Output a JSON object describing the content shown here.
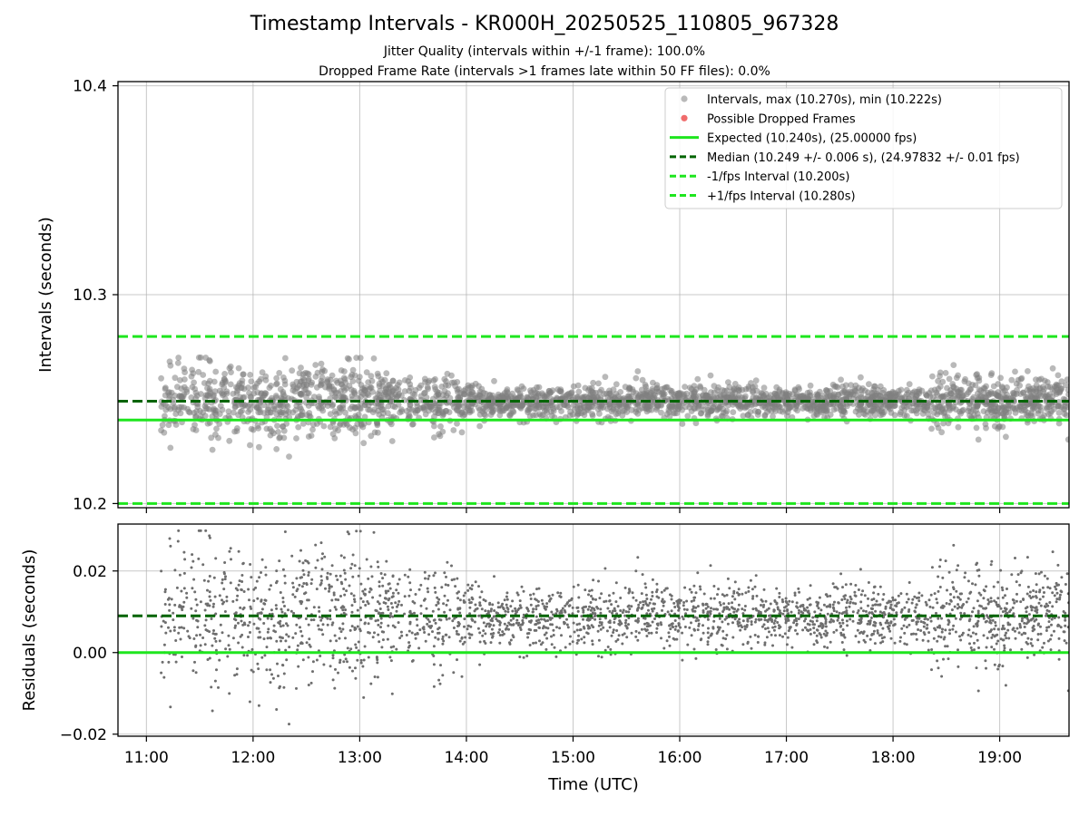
{
  "header": {
    "title": "Timestamp Intervals - KR000H_20250525_110805_967328",
    "subtitle_jitter": "Jitter Quality (intervals within +/-1 frame): 100.0%",
    "subtitle_dropped": "Dropped Frame Rate (intervals >1 frames late within 50 FF files): 0.0%"
  },
  "chart_data": [
    {
      "type": "scatter",
      "xlabel": "",
      "ylabel": "Intervals (seconds)",
      "xlim": [
        "10:44",
        "19:39"
      ],
      "ylim": [
        10.198,
        10.402
      ],
      "yticks": [
        10.2,
        10.3,
        10.4
      ],
      "ytick_labels": [
        "10.2",
        "10.3",
        "10.4"
      ],
      "grid": true,
      "legend_placement": "top-right",
      "scatter_x_range": [
        "11:08",
        "19:39"
      ],
      "series": [
        {
          "name": "Intervals, max (10.270s), min (10.222s)",
          "kind": "points",
          "color": "#808080",
          "max": 10.27,
          "min": 10.222,
          "median": 10.249
        },
        {
          "name": "Possible Dropped Frames",
          "kind": "points",
          "color": "#f06c6c",
          "values": []
        }
      ],
      "hlines": [
        {
          "name": "Expected (10.240s), (25.00000 fps)",
          "y": 10.24,
          "color": "#1ee61e",
          "style": "solid"
        },
        {
          "name": "Median (10.249 +/- 0.006 s), (24.97832 +/- 0.01 fps)",
          "y": 10.249,
          "color": "#006400",
          "style": "dashed"
        },
        {
          "name": "-1/fps Interval (10.200s)",
          "y": 10.2,
          "color": "#1ee61e",
          "style": "dashed"
        },
        {
          "name": "+1/fps Interval (10.280s)",
          "y": 10.28,
          "color": "#1ee61e",
          "style": "dashed"
        }
      ]
    },
    {
      "type": "scatter",
      "xlabel": "Time (UTC)",
      "ylabel": "Residuals (seconds)",
      "xlim": [
        "10:44",
        "19:39"
      ],
      "ylim": [
        -0.0205,
        0.0315
      ],
      "yticks": [
        -0.02,
        0.0,
        0.02
      ],
      "ytick_labels": [
        "−0.02",
        "0.00",
        "0.02"
      ],
      "xticks": [
        "11:00",
        "12:00",
        "13:00",
        "14:00",
        "15:00",
        "16:00",
        "17:00",
        "18:00",
        "19:00"
      ],
      "grid": true,
      "series": [
        {
          "name": "Residuals",
          "kind": "points",
          "color": "#808080",
          "max": 0.03,
          "min": -0.018
        }
      ],
      "hlines": [
        {
          "name": "Zero",
          "y": 0.0,
          "color": "#1ee61e",
          "style": "solid"
        },
        {
          "name": "Median residual",
          "y": 0.009,
          "color": "#006400",
          "style": "dashed"
        }
      ]
    }
  ]
}
